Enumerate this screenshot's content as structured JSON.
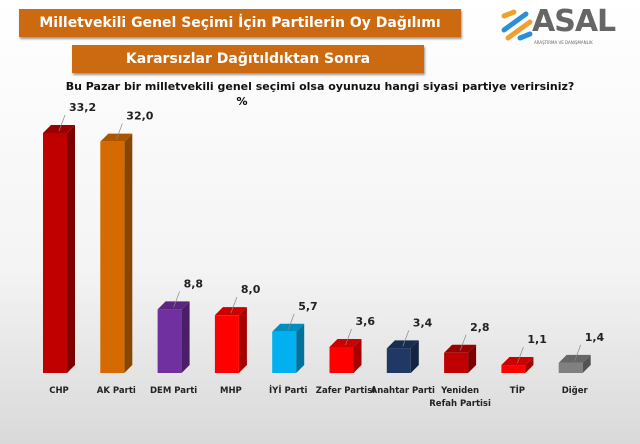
{
  "header": {
    "title": "Milletvekili Genel Seçimi İçin Partilerin Oy Dağılımı",
    "subtitle": "Kararsızlar Dağıtıldıktan Sonra"
  },
  "logo": {
    "name": "ASAL",
    "tagline": "ARAŞTIRMA VE DANIŞMANLIK"
  },
  "chart_data": {
    "type": "bar",
    "title": "Bu Pazar bir milletvekili genel seçimi olsa oyunuzu hangi siyasi partiye verirsiniz?",
    "ylabel": "%",
    "categories": [
      "CHP",
      "AK Parti",
      "DEM Parti",
      "MHP",
      "İYİ Parti",
      "Zafer Partisi",
      "Anahtar Parti",
      "Yeniden Refah Partisi",
      "TİP",
      "Diğer"
    ],
    "values": [
      33.2,
      32.0,
      8.8,
      8.0,
      5.7,
      3.6,
      3.4,
      2.8,
      1.1,
      1.4
    ],
    "value_labels": [
      "33,2",
      "32,0",
      "8,8",
      "8,0",
      "5,7",
      "3,6",
      "3,4",
      "2,8",
      "1,1",
      "1,4"
    ],
    "colors": [
      "#c00000",
      "#d46a00",
      "#7030a0",
      "#ff0000",
      "#00b0f0",
      "#ff0000",
      "#1f3864",
      "#c00000",
      "#ff0000",
      "#808080"
    ],
    "grid": false,
    "legend": "none",
    "ylim": [
      0,
      34
    ]
  }
}
